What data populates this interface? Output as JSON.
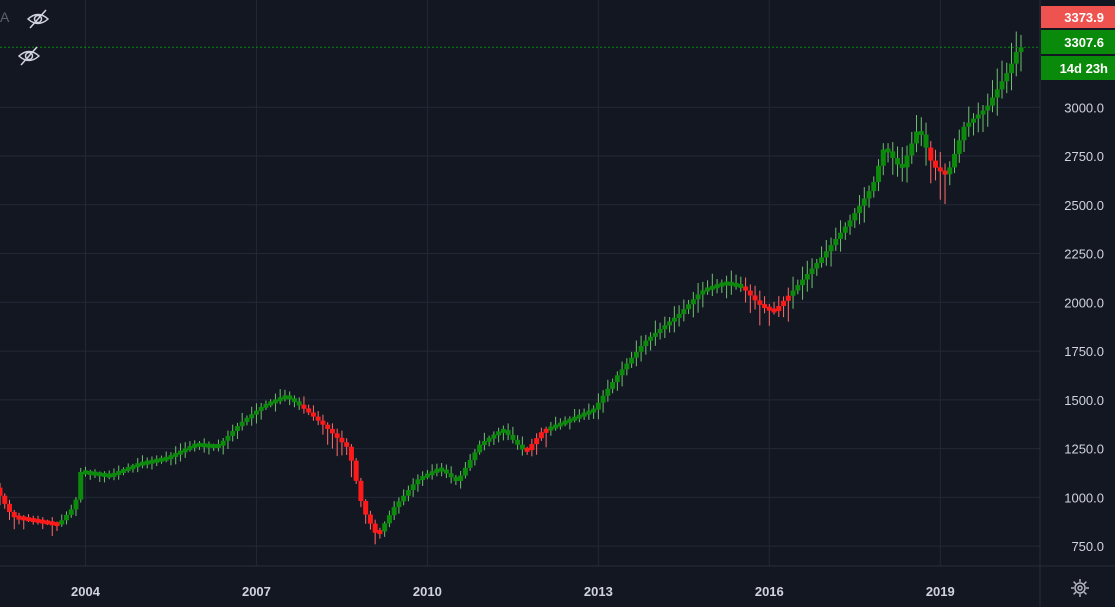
{
  "header": {
    "partial_label": "A",
    "hidden_icons": [
      "eye-off-icon",
      "eye-off-icon"
    ]
  },
  "footer": {
    "settings_icon": "gear-icon"
  },
  "chart_data": {
    "type": "candlestick",
    "x_axis_labels": [
      "2004",
      "2007",
      "2010",
      "2013",
      "2016",
      "2019"
    ],
    "x_range": [
      2002.5,
      2020.75
    ],
    "y_axis_labels": [
      "3000.0",
      "2750.0",
      "2500.0",
      "2250.0",
      "2000.0",
      "1750.0",
      "1500.0",
      "1250.0",
      "1000.0",
      "750.0"
    ],
    "y_ticks": [
      3000,
      2750,
      2500,
      2250,
      2000,
      1750,
      1500,
      1250,
      1000,
      750
    ],
    "ylim": [
      648,
      3550
    ],
    "grid": true,
    "colors": {
      "up": "#0c8a0c",
      "down": "#ff1a1a",
      "background": "#131722",
      "grid": "#232836",
      "price_line": "#26a69a",
      "badge_red": "#ef5350",
      "badge_green": "#0a8a0a"
    },
    "badges": [
      {
        "label": "3373.9",
        "value": 3373.9,
        "color": "red"
      },
      {
        "label": "3307.6",
        "value": 3307.6,
        "color": "green"
      },
      {
        "label": "14d 23h",
        "color": "green"
      }
    ],
    "current_price": 3307.6,
    "series_keypoints": [
      [
        2002.5,
        1050
      ],
      [
        2002.8,
        900
      ],
      [
        2003.2,
        880
      ],
      [
        2003.6,
        860
      ],
      [
        2003.9,
        960
      ],
      [
        2004.0,
        1130
      ],
      [
        2004.5,
        1110
      ],
      [
        2005.0,
        1170
      ],
      [
        2005.5,
        1200
      ],
      [
        2006.0,
        1270
      ],
      [
        2006.4,
        1260
      ],
      [
        2006.8,
        1380
      ],
      [
        2007.2,
        1470
      ],
      [
        2007.6,
        1520
      ],
      [
        2007.9,
        1460
      ],
      [
        2008.3,
        1360
      ],
      [
        2008.7,
        1250
      ],
      [
        2008.95,
        940
      ],
      [
        2009.2,
        800
      ],
      [
        2009.5,
        950
      ],
      [
        2009.9,
        1090
      ],
      [
        2010.3,
        1150
      ],
      [
        2010.6,
        1080
      ],
      [
        2011.0,
        1270
      ],
      [
        2011.4,
        1350
      ],
      [
        2011.8,
        1230
      ],
      [
        2012.1,
        1340
      ],
      [
        2012.6,
        1400
      ],
      [
        2013.0,
        1450
      ],
      [
        2013.4,
        1620
      ],
      [
        2013.9,
        1800
      ],
      [
        2014.5,
        1940
      ],
      [
        2014.9,
        2060
      ],
      [
        2015.3,
        2100
      ],
      [
        2015.6,
        2080
      ],
      [
        2015.9,
        1990
      ],
      [
        2016.15,
        1950
      ],
      [
        2016.5,
        2060
      ],
      [
        2017.0,
        2230
      ],
      [
        2017.5,
        2420
      ],
      [
        2017.9,
        2600
      ],
      [
        2018.1,
        2800
      ],
      [
        2018.4,
        2680
      ],
      [
        2018.7,
        2900
      ],
      [
        2018.95,
        2700
      ],
      [
        2019.2,
        2650
      ],
      [
        2019.5,
        2900
      ],
      [
        2019.9,
        3000
      ],
      [
        2020.3,
        3200
      ],
      [
        2020.45,
        3307.6
      ]
    ],
    "down_intervals": [
      [
        2002.5,
        2003.5
      ],
      [
        2007.8,
        2009.2
      ],
      [
        2011.7,
        2012.15
      ],
      [
        2015.55,
        2016.35
      ],
      [
        2018.75,
        2019.1
      ]
    ]
  }
}
